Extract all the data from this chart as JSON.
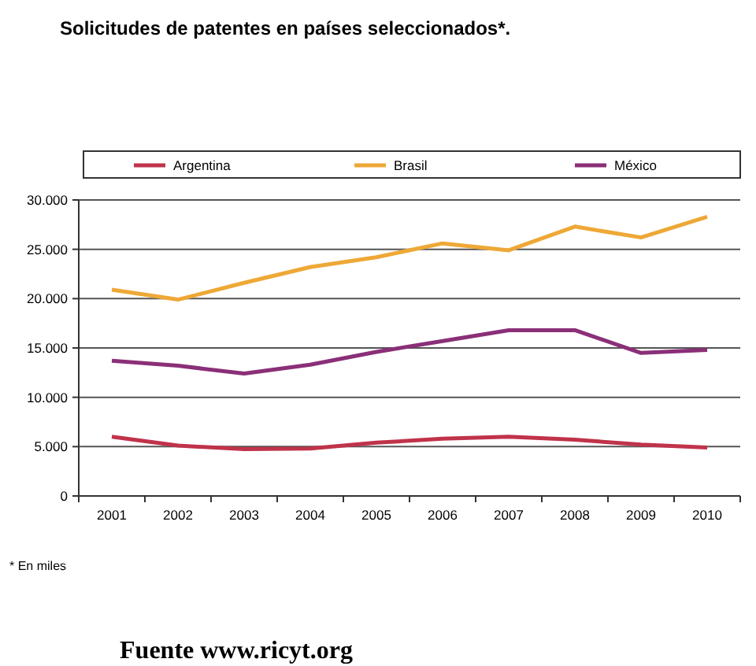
{
  "chart_data": {
    "type": "line",
    "title": "Solicitudes de patentes en países seleccionados*.",
    "categories": [
      "2001",
      "2002",
      "2003",
      "2004",
      "2005",
      "2006",
      "2007",
      "2008",
      "2009",
      "2010"
    ],
    "series": [
      {
        "name": "Argentina",
        "color": "#c0334a",
        "values": [
          6000,
          5100,
          4750,
          4800,
          5400,
          5800,
          6000,
          5700,
          5200,
          4900
        ]
      },
      {
        "name": "Brasil",
        "color": "#eea836",
        "values": [
          20900,
          19900,
          21600,
          23200,
          24200,
          25600,
          24900,
          27300,
          26200,
          28300
        ]
      },
      {
        "name": "México",
        "color": "#8a2f78",
        "values": [
          13700,
          13200,
          12400,
          13300,
          14600,
          15700,
          16800,
          16800,
          14500,
          14800
        ]
      }
    ],
    "ylim": [
      0,
      30000
    ],
    "yticks": [
      {
        "value": 0,
        "label": "0"
      },
      {
        "value": 5000,
        "label": "5.000"
      },
      {
        "value": 10000,
        "label": "10.000"
      },
      {
        "value": 15000,
        "label": "15.000"
      },
      {
        "value": 20000,
        "label": "20.000"
      },
      {
        "value": 25000,
        "label": "25.000"
      },
      {
        "value": 30000,
        "label": "30.000"
      }
    ],
    "grid": "y",
    "legend": "top",
    "marker": "none",
    "line_style": "solid",
    "annotations": [
      "* En miles",
      "Fuente www.ricyt.org"
    ]
  }
}
